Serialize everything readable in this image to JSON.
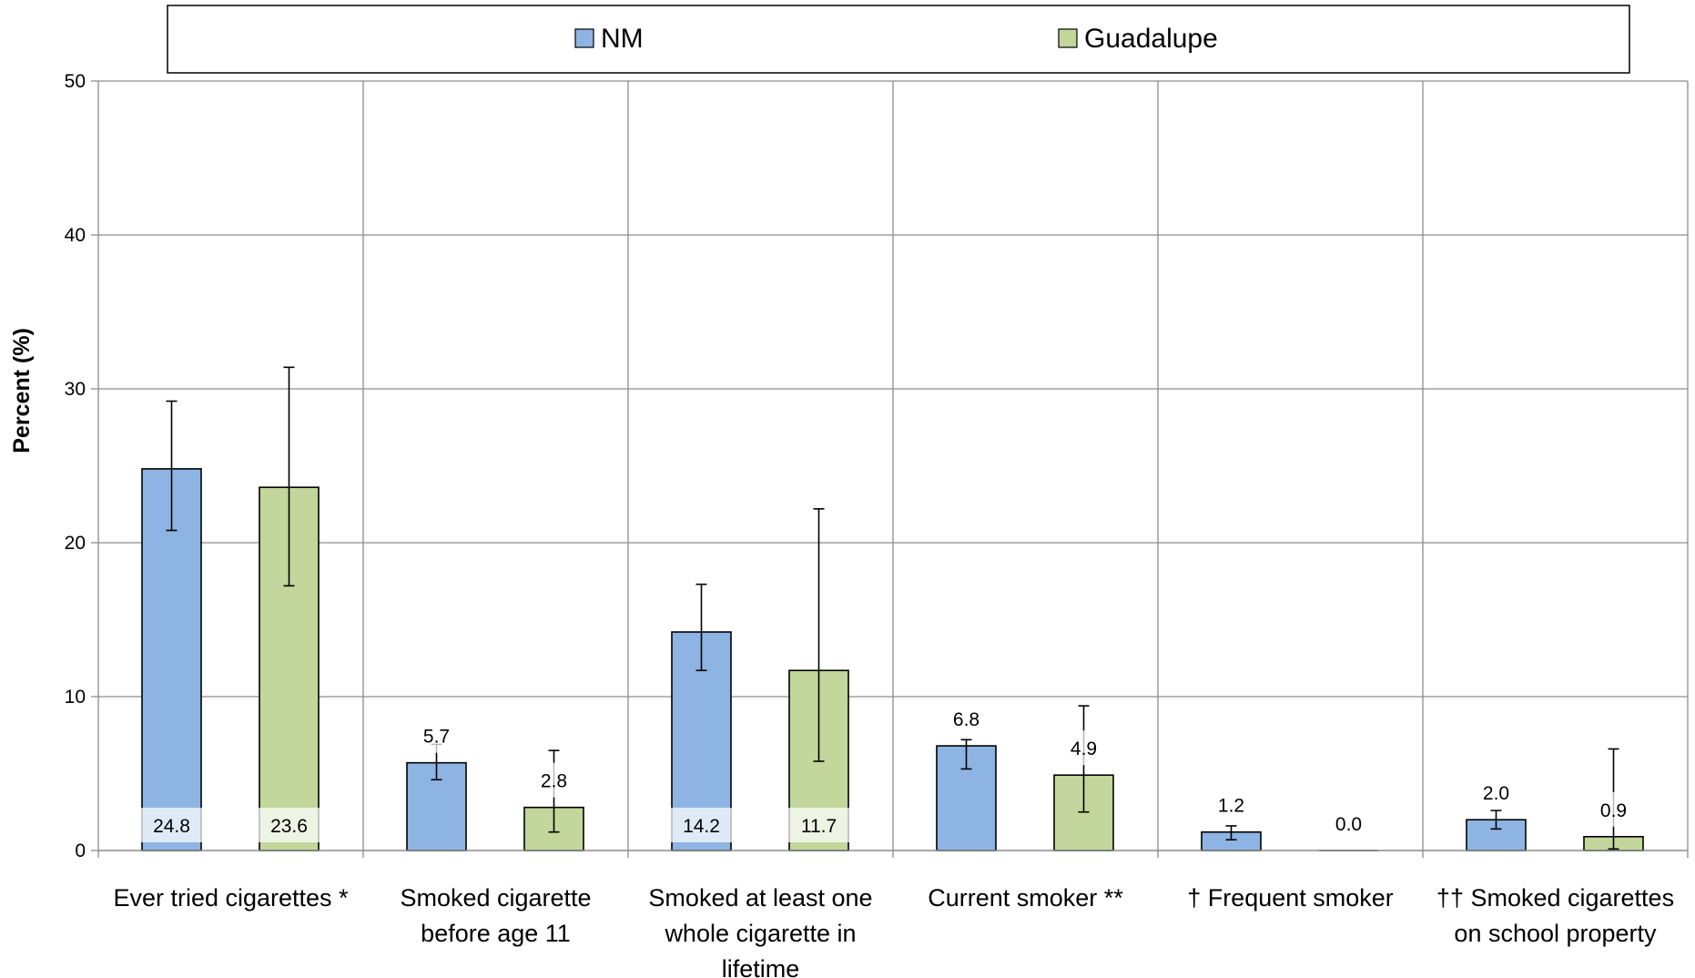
{
  "chart_data": {
    "type": "bar",
    "ylabel": "Percent (%)",
    "ylim": [
      0,
      50
    ],
    "yticks": [
      "0",
      "10",
      "20",
      "30",
      "40",
      "50"
    ],
    "grid": true,
    "legend_position": "top",
    "categories": [
      [
        "Ever tried cigarettes *"
      ],
      [
        "Smoked cigarette",
        "before age 11"
      ],
      [
        "Smoked at least one",
        "whole cigarette in",
        "lifetime"
      ],
      [
        "Current smoker **"
      ],
      [
        "† Frequent smoker"
      ],
      [
        "†† Smoked cigarettes",
        "on school property"
      ]
    ],
    "series": [
      {
        "name": "NM",
        "color": "#8EB4E3",
        "values": [
          24.8,
          5.7,
          14.2,
          6.8,
          1.2,
          2.0
        ],
        "labels": [
          "24.8",
          "5.7",
          "14.2",
          "6.8",
          "1.2",
          "2.0"
        ],
        "ci_low": [
          20.8,
          4.6,
          11.7,
          5.3,
          0.7,
          1.4
        ],
        "ci_high": [
          29.2,
          6.9,
          17.3,
          7.2,
          1.6,
          2.6
        ]
      },
      {
        "name": "Guadalupe",
        "color": "#C3D69B",
        "values": [
          23.6,
          2.8,
          11.7,
          4.9,
          0.0,
          0.9
        ],
        "labels": [
          "23.6",
          "2.8",
          "11.7",
          "4.9",
          "0.0",
          "0.9"
        ],
        "ci_low": [
          17.2,
          1.2,
          5.8,
          2.5,
          0.0,
          0.1
        ],
        "ci_high": [
          31.4,
          6.5,
          22.2,
          9.4,
          0.0,
          6.6
        ]
      }
    ]
  }
}
